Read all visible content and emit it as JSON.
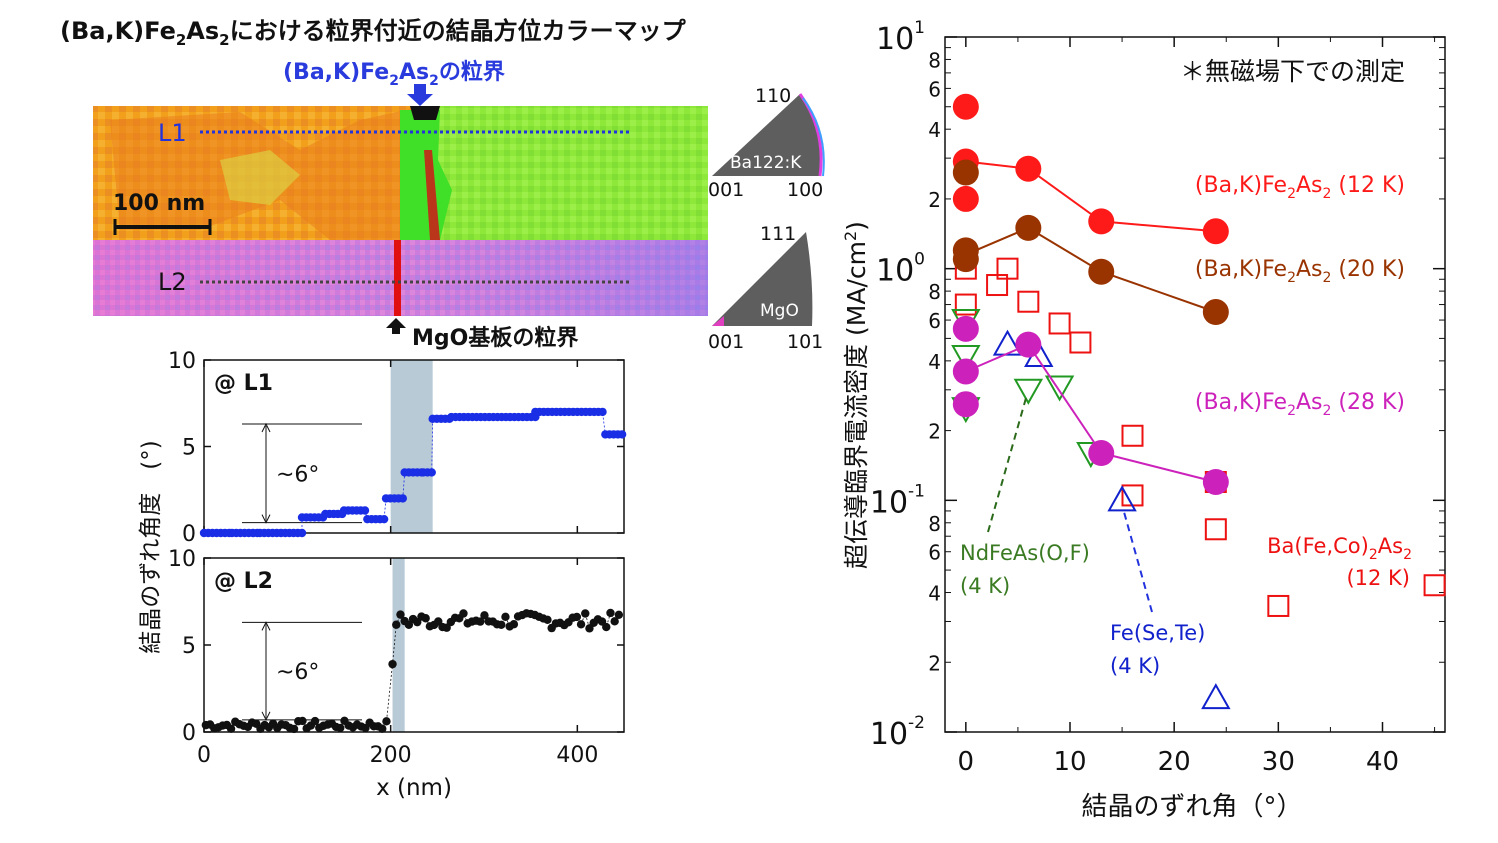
{
  "colors": {
    "ba_k_12k": "#ff1a1a",
    "ba_k_20k": "#993300",
    "ba_k_28k": "#cc22bb",
    "ba_fe_co": "#ee1111",
    "ndfeas": "#229922",
    "fe_se_te": "#1122cc",
    "l1_points": "#1a2ee6",
    "l2_points": "#111111",
    "gb_band": "#b8cad6",
    "map_orange": "#f5a21a",
    "map_green": "#8ee83a",
    "map_pink": "#e070d0",
    "map_violet": "#a070e8",
    "l1_line": "#2233dd"
  },
  "map_panel": {
    "title_part1": "(Ba,K)Fe",
    "title_sub1": "2",
    "title_part2": "As",
    "title_sub2": "2",
    "title_part3": "における粒界付近の結晶方位カラーマップ",
    "gb_label_part1": "(Ba,K)Fe",
    "gb_label_sub1": "2",
    "gb_label_part2": "As",
    "gb_label_sub2": "2",
    "gb_label_part3": "の粒界",
    "line1_label": "L1",
    "line2_label": "L2",
    "scale_bar": "100 nm",
    "substrate_gb_label": "MgO基板の粒界",
    "key1": {
      "top": "110",
      "inner": "Ba122:K",
      "left": "001",
      "right": "100"
    },
    "key2": {
      "top": "111",
      "inner": "MgO",
      "left": "001",
      "right": "101"
    }
  },
  "chart_data": [
    {
      "type": "scatter",
      "title": "@ L1",
      "xlabel": "",
      "ylabel": "結晶のずれ角度　(°)",
      "xlim": [
        0,
        450
      ],
      "ylim": [
        0,
        10
      ],
      "xticks": [
        "0",
        "200",
        "400"
      ],
      "yticks": [
        "0",
        "5",
        "10"
      ],
      "gb_band_x": [
        200,
        245
      ],
      "annotation": "~6°",
      "segments": [
        {
          "x0": 0,
          "x1": 30,
          "y": 0.0
        },
        {
          "x0": 30,
          "x1": 60,
          "y": 0.0
        },
        {
          "x0": 60,
          "x1": 105,
          "y": 0.0
        },
        {
          "x0": 105,
          "x1": 130,
          "y": 0.9
        },
        {
          "x0": 130,
          "x1": 150,
          "y": 1.1
        },
        {
          "x0": 150,
          "x1": 175,
          "y": 1.3
        },
        {
          "x0": 175,
          "x1": 195,
          "y": 0.8
        },
        {
          "x0": 195,
          "x1": 215,
          "y": 2.0
        },
        {
          "x0": 215,
          "x1": 235,
          "y": 3.5
        },
        {
          "x0": 235,
          "x1": 245,
          "y": 3.5
        },
        {
          "x0": 245,
          "x1": 265,
          "y": 6.6
        },
        {
          "x0": 265,
          "x1": 355,
          "y": 6.7
        },
        {
          "x0": 355,
          "x1": 430,
          "y": 7.0
        },
        {
          "x0": 430,
          "x1": 448,
          "y": 5.7
        }
      ]
    },
    {
      "type": "scatter",
      "title": "@ L2",
      "xlabel": "x (nm)",
      "ylabel": "結晶のずれ角度　(°)",
      "xlim": [
        0,
        450
      ],
      "ylim": [
        0,
        10
      ],
      "xticks": [
        "0",
        "200",
        "400"
      ],
      "yticks": [
        "0",
        "5",
        "10"
      ],
      "gb_band_x": [
        202,
        215
      ],
      "annotation": "~6°",
      "low_level": 0.4,
      "high_level": 6.4,
      "step_x": 200
    },
    {
      "type": "scatter",
      "title": "＊無磁場下での測定",
      "xlabel": "結晶のずれ角（°）",
      "ylabel": "超伝導臨界電流密度（MA/cm²）",
      "ylabel_main": "超伝導臨界電流密度",
      "ylabel_unit": "(MA/cm",
      "ylabel_sup": "2",
      "ylabel_close": ")",
      "xlim": [
        -2,
        46
      ],
      "ylog": [
        0.01,
        10
      ],
      "xticks": [
        "0",
        "10",
        "20",
        "30",
        "40"
      ],
      "yticks_major": [
        "10⁻²",
        "10⁻¹",
        "10⁰",
        "10¹"
      ],
      "yticks_minor": [
        "2",
        "4",
        "6",
        "8"
      ],
      "series": [
        {
          "name": "(Ba,K)Fe2As2 (12 K)",
          "label_main": "(Ba,K)Fe",
          "label_sub1": "2",
          "label_mid": "As",
          "label_sub2": "2",
          "label_tail": " (12 K)",
          "marker": "filled-circle",
          "points": [
            [
              0,
              5.0
            ],
            [
              0,
              2.9
            ],
            [
              0,
              2.0
            ],
            [
              6,
              2.7
            ],
            [
              13,
              1.6
            ],
            [
              24,
              1.45
            ]
          ],
          "line": [
            [
              0,
              2.9
            ],
            [
              6,
              2.7
            ],
            [
              13,
              1.6
            ],
            [
              24,
              1.45
            ]
          ]
        },
        {
          "name": "(Ba,K)Fe2As2 (20 K)",
          "label_main": "(Ba,K)Fe",
          "label_sub1": "2",
          "label_mid": "As",
          "label_sub2": "2",
          "label_tail": " (20 K)",
          "marker": "filled-circle",
          "points": [
            [
              0,
              2.6
            ],
            [
              0,
              1.2
            ],
            [
              0,
              1.1
            ],
            [
              6,
              1.5
            ],
            [
              13,
              0.97
            ],
            [
              24,
              0.65
            ]
          ],
          "line": [
            [
              0,
              1.15
            ],
            [
              6,
              1.5
            ],
            [
              13,
              0.97
            ],
            [
              24,
              0.65
            ]
          ]
        },
        {
          "name": "(Ba,K)Fe2As2 (28 K)",
          "label_main": "(Ba,K)Fe",
          "label_sub1": "2",
          "label_mid": "As",
          "label_sub2": "2",
          "label_tail": " (28 K)",
          "marker": "filled-circle",
          "points": [
            [
              0,
              0.55
            ],
            [
              0,
              0.36
            ],
            [
              0,
              0.26
            ],
            [
              6,
              0.47
            ],
            [
              13,
              0.16
            ],
            [
              24,
              0.12
            ]
          ],
          "line": [
            [
              0,
              0.36
            ],
            [
              6,
              0.47
            ],
            [
              13,
              0.16
            ],
            [
              24,
              0.12
            ]
          ]
        },
        {
          "name": "Ba(Fe,Co)2As2 (12 K)",
          "label_main": "Ba(Fe,Co)",
          "label_sub1": "2",
          "label_mid": "As",
          "label_sub2": "2",
          "label_tail": "(12 K)",
          "marker": "open-square",
          "points": [
            [
              0,
              1.0
            ],
            [
              0,
              0.7
            ],
            [
              3,
              0.85
            ],
            [
              4,
              1.0
            ],
            [
              6,
              0.72
            ],
            [
              9,
              0.58
            ],
            [
              11,
              0.48
            ],
            [
              16,
              0.19
            ],
            [
              16,
              0.105
            ],
            [
              24,
              0.12
            ],
            [
              24,
              0.075
            ],
            [
              30,
              0.035
            ],
            [
              45,
              0.043
            ]
          ]
        },
        {
          "name": "NdFeAs(O,F) (4 K)",
          "label_line1": "NdFeAs(O,F)",
          "label_line2": "(4 K)",
          "marker": "open-triangle-down",
          "points": [
            [
              0,
              0.6
            ],
            [
              0,
              0.42
            ],
            [
              0,
              0.25
            ],
            [
              6,
              0.3
            ],
            [
              9,
              0.31
            ],
            [
              12,
              0.16
            ]
          ]
        },
        {
          "name": "Fe(Se,Te) (4 K)",
          "label_line1": "Fe(Se,Te)",
          "label_line2": "(4 K)",
          "marker": "open-triangle-up",
          "points": [
            [
              4,
              0.47
            ],
            [
              7,
              0.42
            ],
            [
              15,
              0.1
            ],
            [
              24,
              0.014
            ]
          ]
        }
      ]
    }
  ]
}
